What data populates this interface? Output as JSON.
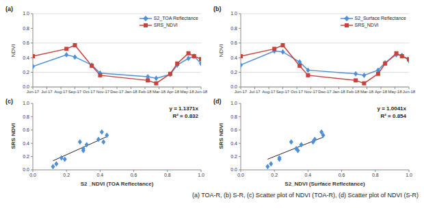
{
  "chart_data": [
    {
      "type": "line",
      "title": "(a)",
      "y_label": "NDVI",
      "grid": true,
      "legend": "upper right",
      "x": [
        0,
        2.4,
        3.0,
        4.2,
        4.8,
        8.2,
        8.8,
        9.8,
        10.3,
        11.1,
        11.5,
        12
      ],
      "xlim": [
        0,
        12
      ],
      "xticks": [
        {
          "value": 0,
          "label": "Jun-17"
        },
        {
          "value": 1,
          "label": "Jul-17"
        },
        {
          "value": 2,
          "label": "Aug-17"
        },
        {
          "value": 3,
          "label": "Sep-17"
        },
        {
          "value": 4,
          "label": "Oct-17"
        },
        {
          "value": 5,
          "label": "Nov-17"
        },
        {
          "value": 6,
          "label": "Dec-17"
        },
        {
          "value": 7,
          "label": "Jan-18"
        },
        {
          "value": 8,
          "label": "Feb-18"
        },
        {
          "value": 9,
          "label": "Mar-18"
        },
        {
          "value": 10,
          "label": "Apr-18"
        },
        {
          "value": 11,
          "label": "May-18"
        },
        {
          "value": 12,
          "label": "Jun-18"
        }
      ],
      "ylim": [
        0,
        1
      ],
      "yticks": [
        {
          "value": 0,
          "label": "0.0"
        },
        0.2,
        0.4,
        0.6,
        0.8,
        {
          "value": 1,
          "label": "1.0"
        }
      ],
      "series": [
        {
          "name": "S2_TOA Reflectance",
          "color": "#4f8fd6",
          "marker": "diamond",
          "values": [
            0.28,
            0.44,
            0.41,
            0.3,
            0.19,
            0.14,
            0.12,
            0.17,
            0.3,
            0.39,
            0.42,
            0.32
          ]
        },
        {
          "name": "SRS_NDVI",
          "color": "#c8413b",
          "marker": "square",
          "values": [
            0.42,
            0.52,
            0.57,
            0.29,
            0.16,
            0.09,
            0.05,
            0.18,
            0.32,
            0.46,
            0.42,
            0.38
          ]
        }
      ]
    },
    {
      "type": "line",
      "title": "(b)",
      "y_label": "NDVI",
      "grid": true,
      "legend": "upper right",
      "x": [
        0,
        2.4,
        3.0,
        4.2,
        4.8,
        8.2,
        8.8,
        9.8,
        10.3,
        11.1,
        11.5,
        12
      ],
      "xlim": [
        0,
        12
      ],
      "xticks": [
        {
          "value": 0,
          "label": "Jun-17"
        },
        {
          "value": 1,
          "label": "Jul-17"
        },
        {
          "value": 2,
          "label": "Aug-17"
        },
        {
          "value": 3,
          "label": "Sep-17"
        },
        {
          "value": 4,
          "label": "Oct-17"
        },
        {
          "value": 5,
          "label": "Nov-17"
        },
        {
          "value": 6,
          "label": "Dec-17"
        },
        {
          "value": 7,
          "label": "Jan-18"
        },
        {
          "value": 8,
          "label": "Feb-18"
        },
        {
          "value": 9,
          "label": "Mar-18"
        },
        {
          "value": 10,
          "label": "Apr-18"
        },
        {
          "value": 11,
          "label": "May-18"
        },
        {
          "value": 12,
          "label": "Jun-18"
        }
      ],
      "ylim": [
        0,
        1
      ],
      "yticks": [
        {
          "value": 0,
          "label": "0.0"
        },
        0.2,
        0.4,
        0.6,
        0.8,
        {
          "value": 1,
          "label": "1.0"
        }
      ],
      "series": [
        {
          "name": "S2_Surface Reflectance",
          "color": "#4f8fd6",
          "marker": "diamond",
          "values": [
            0.3,
            0.49,
            0.48,
            0.34,
            0.23,
            0.18,
            0.16,
            0.23,
            0.33,
            0.44,
            0.43,
            0.36
          ]
        },
        {
          "name": "SRS_NDVI",
          "color": "#c8413b",
          "marker": "square",
          "values": [
            0.42,
            0.52,
            0.57,
            0.29,
            0.16,
            0.09,
            0.05,
            0.18,
            0.32,
            0.46,
            0.42,
            0.38
          ]
        }
      ]
    },
    {
      "type": "scatter",
      "title": "(c)",
      "x_label": "S2 _NDVI (TOA Reflectance)",
      "y_label": "SRS NDVI",
      "grid": false,
      "xlim": [
        0,
        1
      ],
      "xticks": [
        {
          "value": 0,
          "label": "0.0"
        },
        0.2,
        0.4,
        0.6,
        0.8,
        {
          "value": 1,
          "label": "1.0"
        }
      ],
      "ylim": [
        0,
        1
      ],
      "yticks": [
        {
          "value": 0,
          "label": "0.0"
        },
        0.2,
        0.4,
        0.6,
        0.8,
        {
          "value": 1,
          "label": "1.0"
        }
      ],
      "color": "#4f8fd6",
      "marker": "diamond",
      "x": [
        0.28,
        0.44,
        0.41,
        0.3,
        0.19,
        0.14,
        0.12,
        0.17,
        0.3,
        0.39,
        0.42,
        0.32
      ],
      "values": [
        0.42,
        0.52,
        0.57,
        0.29,
        0.16,
        0.09,
        0.05,
        0.18,
        0.32,
        0.46,
        0.42,
        0.38
      ],
      "trendline": {
        "slope": 1.1371,
        "x_range": [
          0.12,
          0.44
        ]
      },
      "annotations": [
        "y = 1.1371x",
        "R² = 0.832"
      ]
    },
    {
      "type": "scatter",
      "title": "(d)",
      "x_label": "S2_NDVI (Surface Reflectance)",
      "y_label": "SRS NDVI",
      "grid": false,
      "xlim": [
        0,
        1
      ],
      "xticks": [
        {
          "value": 0,
          "label": "0.0"
        },
        0.2,
        0.4,
        0.6,
        0.8,
        {
          "value": 1,
          "label": "1.0"
        }
      ],
      "ylim": [
        0,
        1
      ],
      "yticks": [
        {
          "value": 0,
          "label": "0.0"
        },
        0.2,
        0.4,
        0.6,
        0.8,
        {
          "value": 1,
          "label": "1.0"
        }
      ],
      "color": "#4f8fd6",
      "marker": "diamond",
      "x": [
        0.3,
        0.49,
        0.48,
        0.34,
        0.23,
        0.18,
        0.16,
        0.23,
        0.33,
        0.44,
        0.43,
        0.36
      ],
      "values": [
        0.42,
        0.52,
        0.57,
        0.29,
        0.16,
        0.09,
        0.05,
        0.18,
        0.32,
        0.46,
        0.42,
        0.38
      ],
      "trendline": {
        "slope": 1.0041,
        "x_range": [
          0.16,
          0.49
        ]
      },
      "annotations": [
        "y = 1.0041x",
        "R² = 0.854"
      ]
    }
  ],
  "caption": "(a) TOA-R, (b) S-R, (c) Scatter plot of NDVI (TOA-R), (d) Scatter plot of NDVI (S-R)"
}
